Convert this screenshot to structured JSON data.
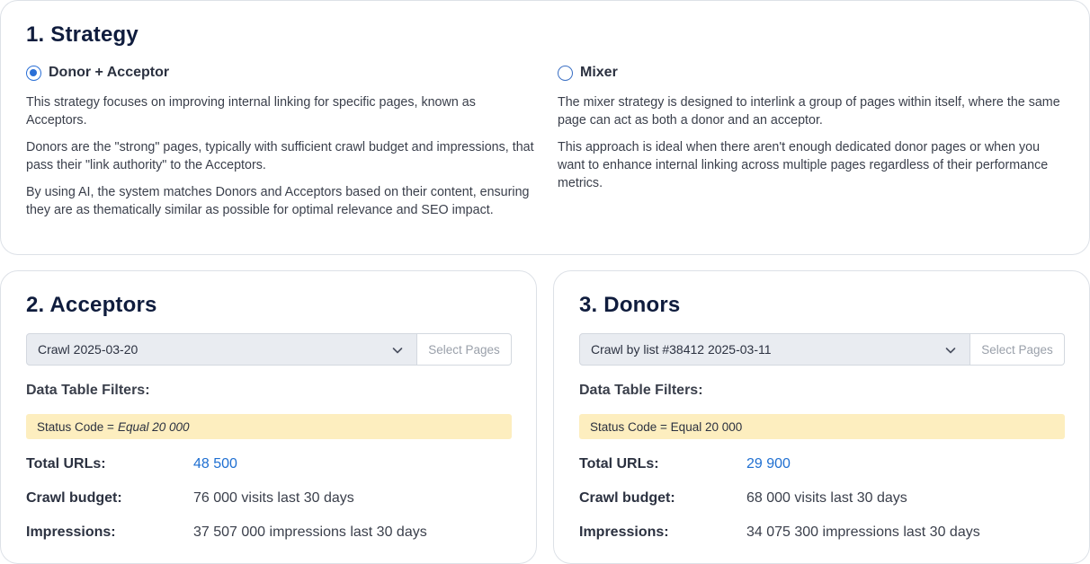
{
  "strategy": {
    "title": "1. Strategy",
    "options": [
      {
        "label": "Donor + Acceptor",
        "selected": true,
        "paragraphs": [
          "This strategy focuses on improving internal linking for specific pages, known as Acceptors.",
          "Donors are the \"strong\" pages, typically with sufficient crawl budget and impressions, that pass their \"link authority\" to the Acceptors.",
          "By using AI, the system matches Donors and Acceptors based on their content, ensuring they are as thematically similar as possible for optimal relevance and SEO impact."
        ]
      },
      {
        "label": "Mixer",
        "selected": false,
        "paragraphs": [
          "The mixer strategy is designed to interlink a group of pages within itself, where the same page can act as both a donor and an acceptor.",
          "This approach is ideal when there aren't enough dedicated donor pages or when you want to enhance internal linking across multiple pages regardless of their performance metrics."
        ]
      }
    ]
  },
  "acceptors": {
    "title": "2. Acceptors",
    "crawl_select": "Crawl 2025-03-20",
    "select_pages": "Select Pages",
    "filters_heading": "Data Table Filters:",
    "filter_name": "Status Code =",
    "filter_value": "Equal 20 000",
    "stats": {
      "total_urls_label": "Total URLs:",
      "total_urls_value": "48 500",
      "crawl_budget_label": "Crawl budget:",
      "crawl_budget_value": "76 000 visits last 30 days",
      "impressions_label": "Impressions:",
      "impressions_value": "37 507 000 impressions last 30 days"
    }
  },
  "donors": {
    "title": "3. Donors",
    "crawl_select": "Crawl by list #38412 2025-03-11",
    "select_pages": "Select Pages",
    "filters_heading": "Data Table Filters:",
    "filter_text": "Status Code = Equal 20 000",
    "stats": {
      "total_urls_label": "Total URLs:",
      "total_urls_value": "29 900",
      "crawl_budget_label": "Crawl budget:",
      "crawl_budget_value": "68 000 visits last 30 days",
      "impressions_label": "Impressions:",
      "impressions_value": "34 075 300 impressions last 30 days"
    }
  },
  "colors": {
    "accent": "#2a6fd6",
    "link": "#1f6fd1",
    "filter_bg": "#fdeebf",
    "select_bg": "#e9ecf1"
  }
}
